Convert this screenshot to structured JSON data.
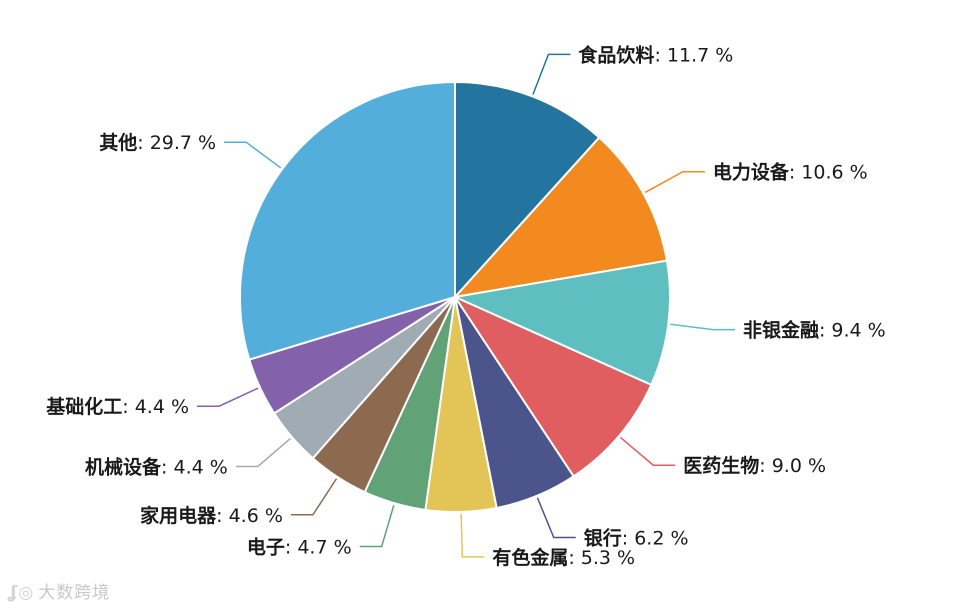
{
  "chart_data": {
    "type": "pie",
    "unit": "%",
    "slices": [
      {
        "label": "食品饮料",
        "value": 11.7,
        "color": "#2474a0"
      },
      {
        "label": "电力设备",
        "value": 10.6,
        "color": "#f28a1f"
      },
      {
        "label": "非银金融",
        "value": 9.4,
        "color": "#5ebec0"
      },
      {
        "label": "医药生物",
        "value": 9.0,
        "color": "#e05e5f"
      },
      {
        "label": "银行",
        "value": 6.2,
        "color": "#4b558c"
      },
      {
        "label": "有色金属",
        "value": 5.3,
        "color": "#e3c557"
      },
      {
        "label": "电子",
        "value": 4.7,
        "color": "#61a277"
      },
      {
        "label": "家用电器",
        "value": 4.6,
        "color": "#8c6a4f"
      },
      {
        "label": "机械设备",
        "value": 4.4,
        "color": "#a1abb4"
      },
      {
        "label": "基础化工",
        "value": 4.4,
        "color": "#8361ab"
      },
      {
        "label": "其他",
        "value": 29.7,
        "color": "#53aedb"
      }
    ]
  },
  "watermark": {
    "icon": "watermark-logo-icon",
    "text": "大数跨境"
  }
}
